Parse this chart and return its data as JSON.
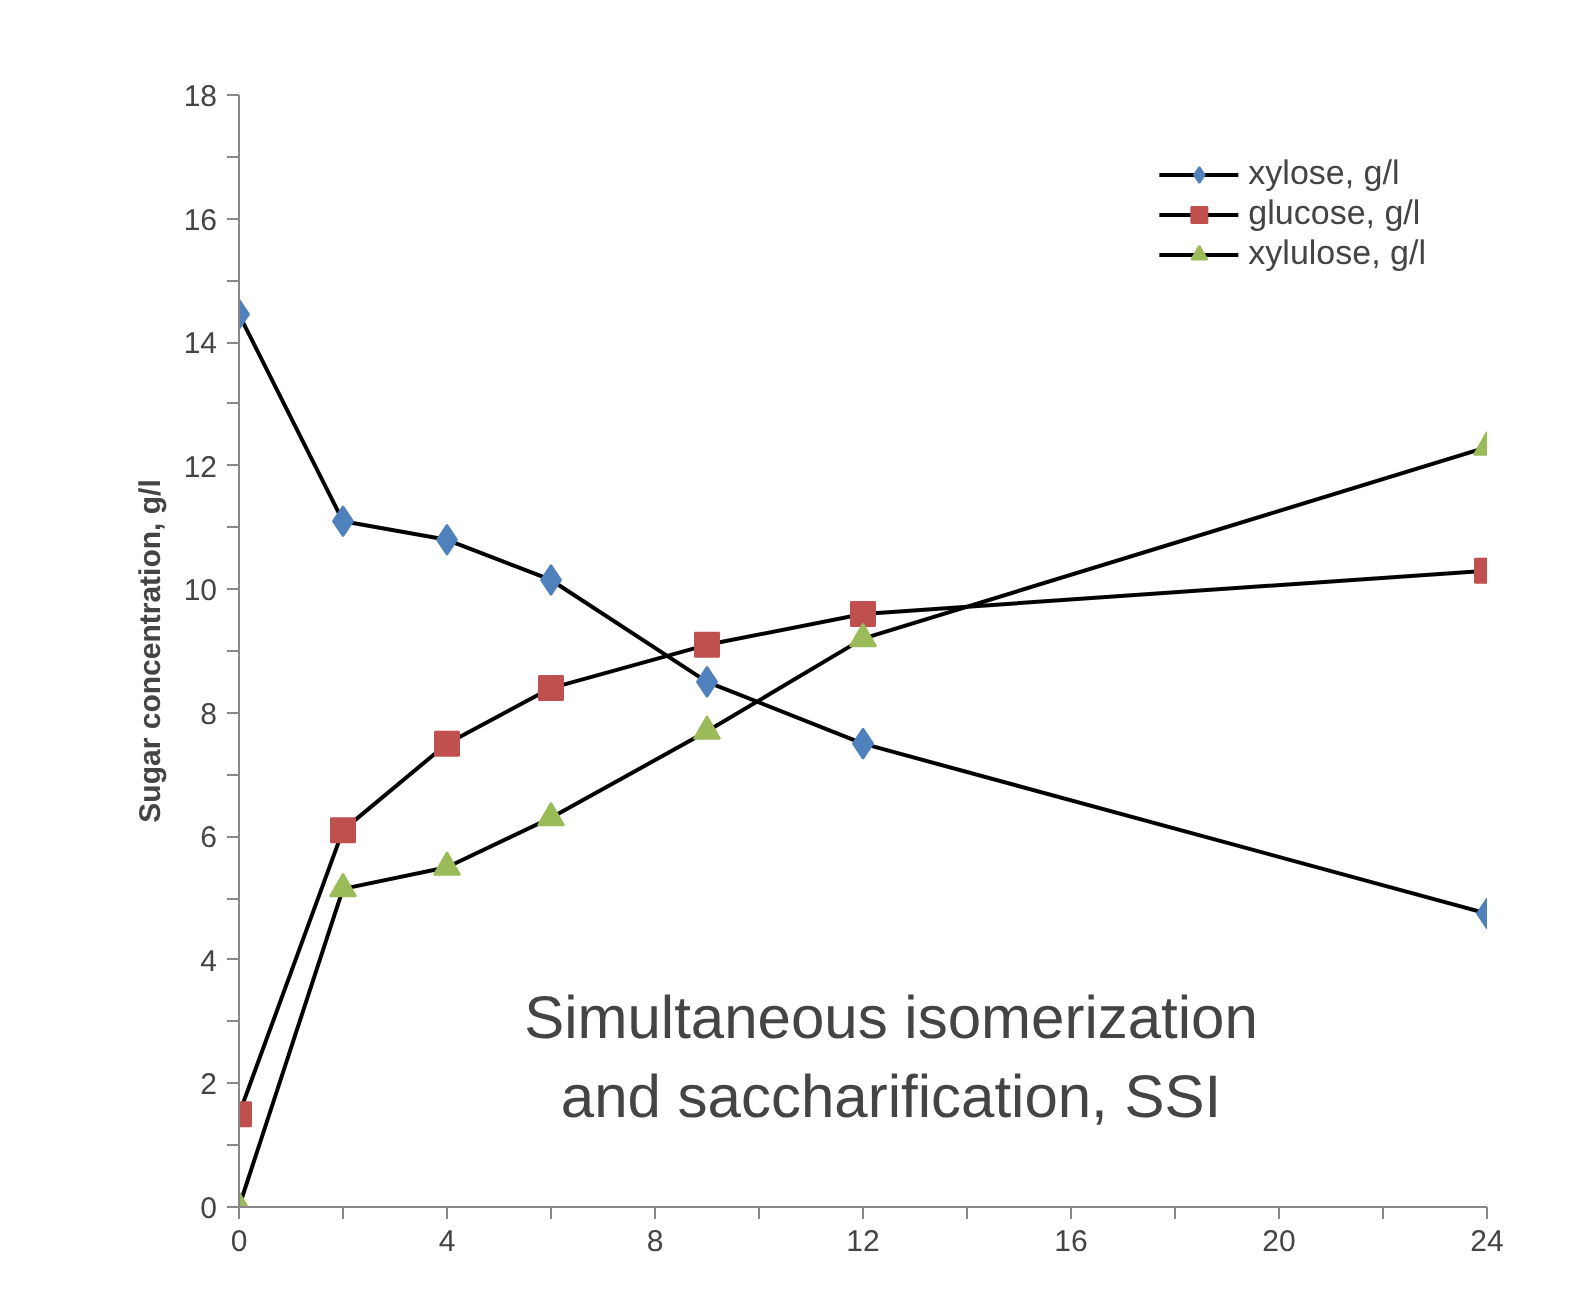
{
  "chart_data": {
    "type": "line",
    "ylabel": "Sugar concentration, g/l",
    "x": [
      0,
      2,
      4,
      6,
      9,
      12,
      24
    ],
    "series": [
      {
        "name": "xylose, g/l",
        "color": "#4f81bd",
        "marker": "diamond",
        "values": [
          14.45,
          11.1,
          10.8,
          10.15,
          8.5,
          7.5,
          4.75
        ]
      },
      {
        "name": "glucose, g/l",
        "color": "#c0504d",
        "marker": "square",
        "values": [
          1.5,
          6.1,
          7.5,
          8.4,
          9.1,
          9.6,
          10.3
        ]
      },
      {
        "name": "xylulose, g/l",
        "color": "#9bbb59",
        "marker": "triangle",
        "values": [
          0,
          5.15,
          5.5,
          6.3,
          7.7,
          9.2,
          12.3
        ]
      }
    ],
    "annotations": [
      "Simultaneous isomerization\nand saccharification, SSI"
    ],
    "xlim": [
      0,
      24
    ],
    "ylim": [
      0,
      18
    ],
    "xticks": [
      0,
      {
        "value": 2,
        "label": null
      },
      4,
      {
        "value": 6,
        "label": null
      },
      8,
      {
        "value": 10,
        "label": null
      },
      12,
      {
        "value": 14,
        "label": null
      },
      16,
      {
        "value": 18,
        "label": null
      },
      20,
      {
        "value": 22,
        "label": null
      },
      24
    ],
    "yticks": [
      0,
      {
        "value": 1,
        "label": null
      },
      2,
      {
        "value": 3,
        "label": null
      },
      4,
      {
        "value": 5,
        "label": null
      },
      6,
      {
        "value": 7,
        "label": null
      },
      8,
      {
        "value": 9,
        "label": null
      },
      10,
      {
        "value": 11,
        "label": null
      },
      12,
      {
        "value": 13,
        "label": null
      },
      14,
      {
        "value": 15,
        "label": null
      },
      16,
      {
        "value": 17,
        "label": null
      },
      18
    ],
    "grid": false,
    "legend": "top right"
  }
}
